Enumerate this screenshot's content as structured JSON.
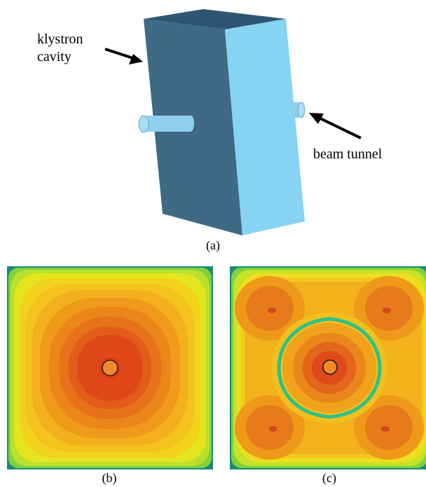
{
  "figure": {
    "cavity_label_line1": "klystron",
    "cavity_label_line2": "cavity",
    "tunnel_label": "beam tunnel",
    "caption_a": "(a)",
    "caption_b": "(b)",
    "caption_c": "(c)"
  },
  "colors": {
    "cavity_side_dark": "#3f6a84",
    "cavity_front_light": "#87d3f3",
    "cavity_top": "#2f5570",
    "tunnel": "#8fd0ef",
    "field_edge": "#1a8a7a",
    "field_green": "#b9e02d",
    "field_yellow": "#f0e51c",
    "field_orange": "#ef9a1a",
    "field_red": "#e0401a"
  }
}
